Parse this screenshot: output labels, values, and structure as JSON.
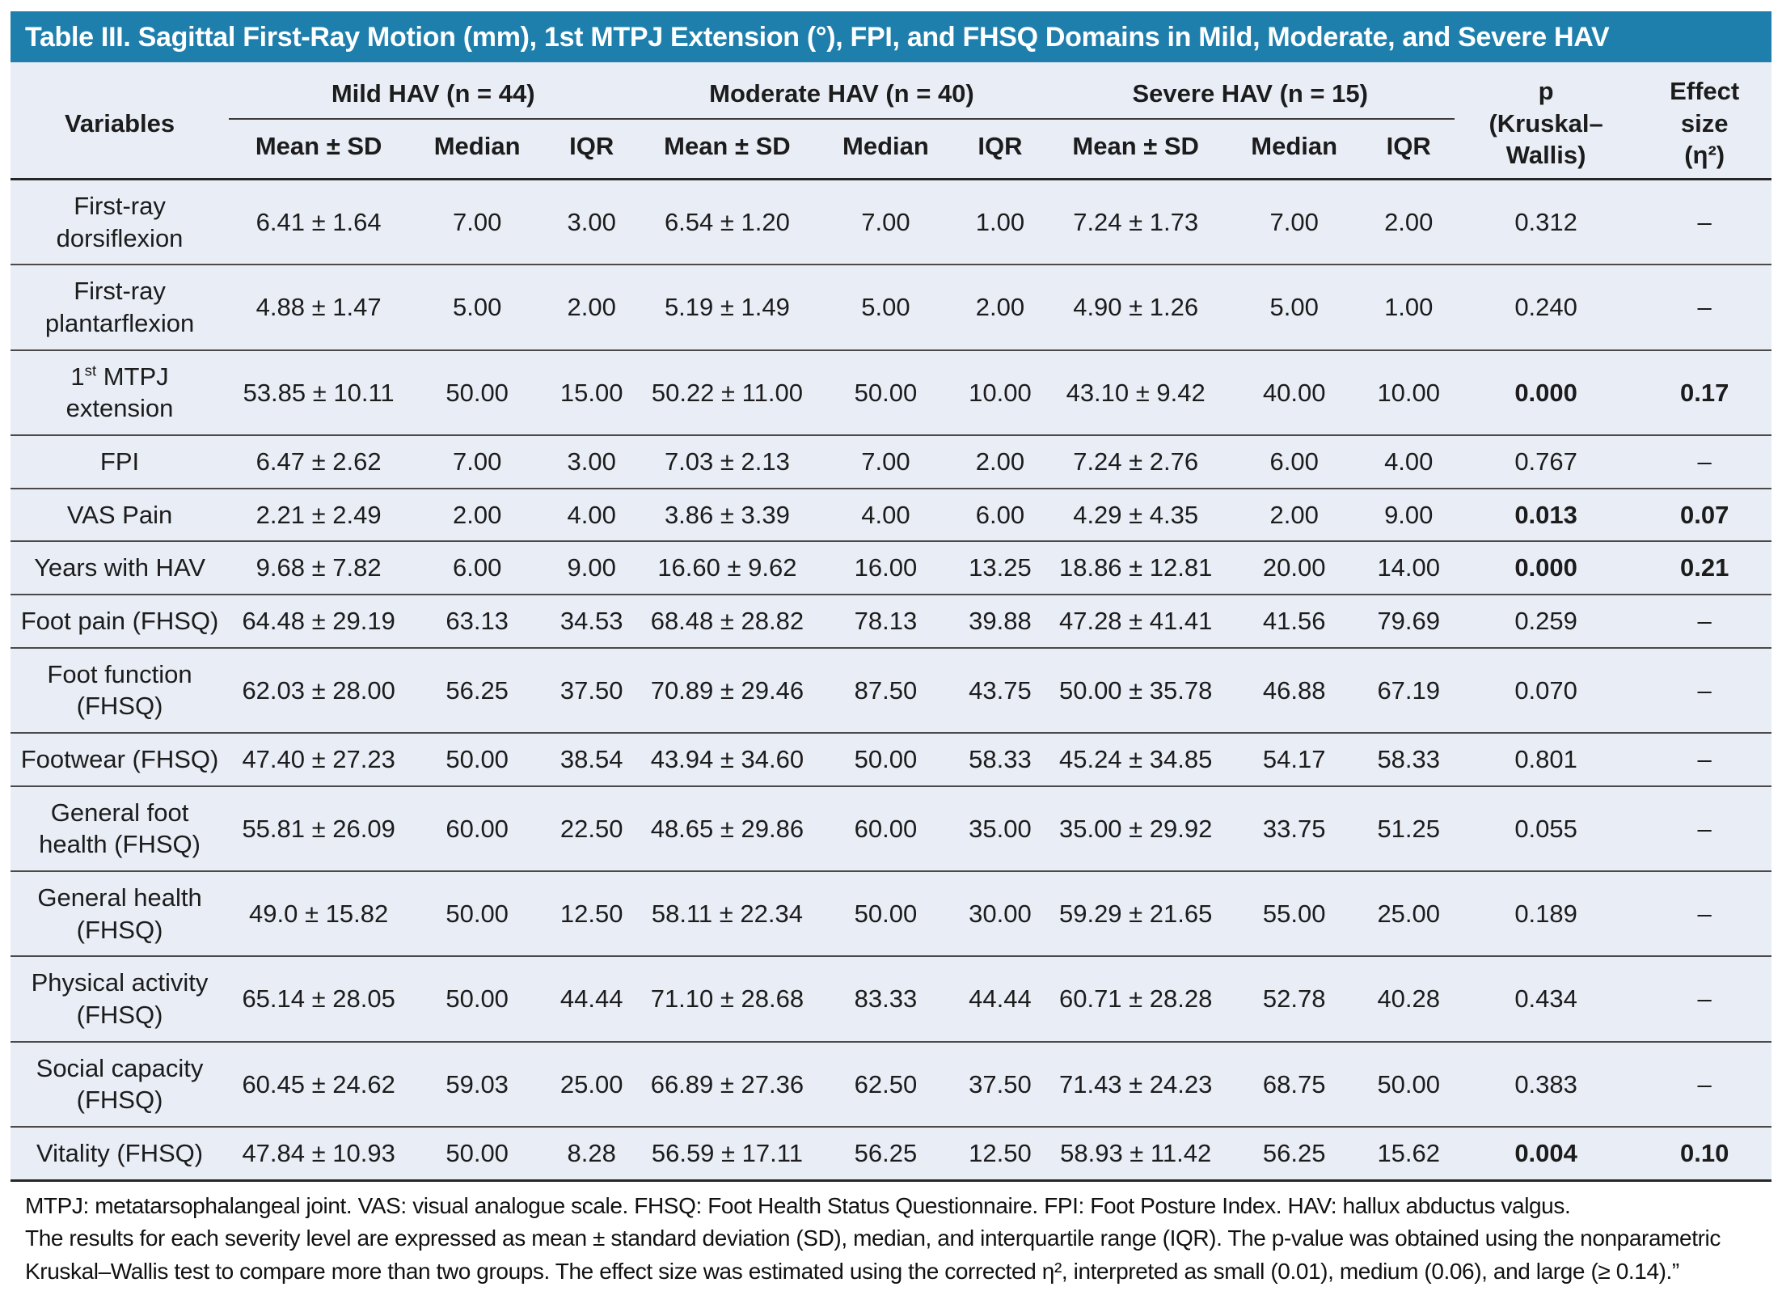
{
  "colors": {
    "title_bar": "#1e7fad",
    "table_bg": "#e9edf6"
  },
  "title": "Table III. Sagittal First-Ray Motion (mm), 1st MTPJ Extension (°), FPI, and FHSQ Domains in Mild, Moderate, and Severe HAV",
  "header": {
    "variables": "Variables",
    "groups": [
      "Mild HAV (n = 44)",
      "Moderate HAV (n = 40)",
      "Severe HAV (n = 15)"
    ],
    "sub_headers": [
      "Mean ± SD",
      "Median",
      "IQR"
    ],
    "p_col": {
      "line1": "p",
      "line2": "(Kruskal–",
      "line3": "Wallis)"
    },
    "effect_col": {
      "line1": "Effect",
      "line2": "size",
      "line3": "(η²)"
    }
  },
  "rows": [
    {
      "variable": "First-ray dorsiflexion",
      "superscript": false,
      "mild": [
        "6.41 ± 1.64",
        "7.00",
        "3.00"
      ],
      "moderate": [
        "6.54 ± 1.20",
        "7.00",
        "1.00"
      ],
      "severe": [
        "7.24 ± 1.73",
        "7.00",
        "2.00"
      ],
      "p": "0.312",
      "effect": "–",
      "significant": false
    },
    {
      "variable": "First-ray plantarflexion",
      "superscript": false,
      "mild": [
        "4.88 ± 1.47",
        "5.00",
        "2.00"
      ],
      "moderate": [
        "5.19 ± 1.49",
        "5.00",
        "2.00"
      ],
      "severe": [
        "4.90 ± 1.26",
        "5.00",
        "1.00"
      ],
      "p": "0.240",
      "effect": "–",
      "significant": false
    },
    {
      "variable": "1st MTPJ extension",
      "superscript": true,
      "mild": [
        "53.85 ± 10.11",
        "50.00",
        "15.00"
      ],
      "moderate": [
        "50.22 ± 11.00",
        "50.00",
        "10.00"
      ],
      "severe": [
        "43.10 ± 9.42",
        "40.00",
        "10.00"
      ],
      "p": "0.000",
      "effect": "0.17",
      "significant": true
    },
    {
      "variable": "FPI",
      "superscript": false,
      "mild": [
        "6.47 ± 2.62",
        "7.00",
        "3.00"
      ],
      "moderate": [
        "7.03 ± 2.13",
        "7.00",
        "2.00"
      ],
      "severe": [
        "7.24 ± 2.76",
        "6.00",
        "4.00"
      ],
      "p": "0.767",
      "effect": "–",
      "significant": false
    },
    {
      "variable": "VAS Pain",
      "superscript": false,
      "mild": [
        "2.21 ± 2.49",
        "2.00",
        "4.00"
      ],
      "moderate": [
        "3.86 ± 3.39",
        "4.00",
        "6.00"
      ],
      "severe": [
        "4.29 ± 4.35",
        "2.00",
        "9.00"
      ],
      "p": "0.013",
      "effect": "0.07",
      "significant": true
    },
    {
      "variable": "Years with HAV",
      "superscript": false,
      "mild": [
        "9.68 ± 7.82",
        "6.00",
        "9.00"
      ],
      "moderate": [
        "16.60 ± 9.62",
        "16.00",
        "13.25"
      ],
      "severe": [
        "18.86 ± 12.81",
        "20.00",
        "14.00"
      ],
      "p": "0.000",
      "effect": "0.21",
      "significant": true
    },
    {
      "variable": "Foot pain (FHSQ)",
      "superscript": false,
      "mild": [
        "64.48 ± 29.19",
        "63.13",
        "34.53"
      ],
      "moderate": [
        "68.48 ± 28.82",
        "78.13",
        "39.88"
      ],
      "severe": [
        "47.28 ± 41.41",
        "41.56",
        "79.69"
      ],
      "p": "0.259",
      "effect": "–",
      "significant": false
    },
    {
      "variable": "Foot function (FHSQ)",
      "superscript": false,
      "mild": [
        "62.03 ± 28.00",
        "56.25",
        "37.50"
      ],
      "moderate": [
        "70.89 ± 29.46",
        "87.50",
        "43.75"
      ],
      "severe": [
        "50.00 ± 35.78",
        "46.88",
        "67.19"
      ],
      "p": "0.070",
      "effect": "–",
      "significant": false
    },
    {
      "variable": "Footwear (FHSQ)",
      "superscript": false,
      "mild": [
        "47.40 ± 27.23",
        "50.00",
        "38.54"
      ],
      "moderate": [
        "43.94 ± 34.60",
        "50.00",
        "58.33"
      ],
      "severe": [
        "45.24 ± 34.85",
        "54.17",
        "58.33"
      ],
      "p": "0.801",
      "effect": "–",
      "significant": false
    },
    {
      "variable": "General foot health (FHSQ)",
      "superscript": false,
      "mild": [
        "55.81 ± 26.09",
        "60.00",
        "22.50"
      ],
      "moderate": [
        "48.65 ± 29.86",
        "60.00",
        "35.00"
      ],
      "severe": [
        "35.00 ± 29.92",
        "33.75",
        "51.25"
      ],
      "p": "0.055",
      "effect": "–",
      "significant": false
    },
    {
      "variable": "General health (FHSQ)",
      "superscript": false,
      "mild": [
        "49.0 ± 15.82",
        "50.00",
        "12.50"
      ],
      "moderate": [
        "58.11 ± 22.34",
        "50.00",
        "30.00"
      ],
      "severe": [
        "59.29 ± 21.65",
        "55.00",
        "25.00"
      ],
      "p": "0.189",
      "effect": "–",
      "significant": false
    },
    {
      "variable": "Physical activity (FHSQ)",
      "superscript": false,
      "mild": [
        "65.14 ± 28.05",
        "50.00",
        "44.44"
      ],
      "moderate": [
        "71.10 ± 28.68",
        "83.33",
        "44.44"
      ],
      "severe": [
        "60.71 ± 28.28",
        "52.78",
        "40.28"
      ],
      "p": "0.434",
      "effect": "–",
      "significant": false
    },
    {
      "variable": "Social capacity (FHSQ)",
      "superscript": false,
      "mild": [
        "60.45 ± 24.62",
        "59.03",
        "25.00"
      ],
      "moderate": [
        "66.89 ± 27.36",
        "62.50",
        "37.50"
      ],
      "severe": [
        "71.43 ± 24.23",
        "68.75",
        "50.00"
      ],
      "p": "0.383",
      "effect": "–",
      "significant": false
    },
    {
      "variable": "Vitality (FHSQ)",
      "superscript": false,
      "mild": [
        "47.84 ± 10.93",
        "50.00",
        "8.28"
      ],
      "moderate": [
        "56.59 ± 17.11",
        "56.25",
        "12.50"
      ],
      "severe": [
        "58.93 ± 11.42",
        "56.25",
        "15.62"
      ],
      "p": "0.004",
      "effect": "0.10",
      "significant": true
    }
  ],
  "footnotes": [
    "MTPJ: metatarsophalangeal joint. VAS: visual analogue scale. FHSQ: Foot Health Status Questionnaire. FPI: Foot Posture Index. HAV: hallux abductus valgus.",
    "The results for each severity level are expressed as mean ± standard deviation (SD), median, and interquartile range (IQR). The p-value was obtained using the nonparametric",
    "Kruskal–Wallis test to compare more than two groups. The effect size was estimated using the corrected η², interpreted as small (0.01), medium (0.06), and large (≥ 0.14).”"
  ]
}
